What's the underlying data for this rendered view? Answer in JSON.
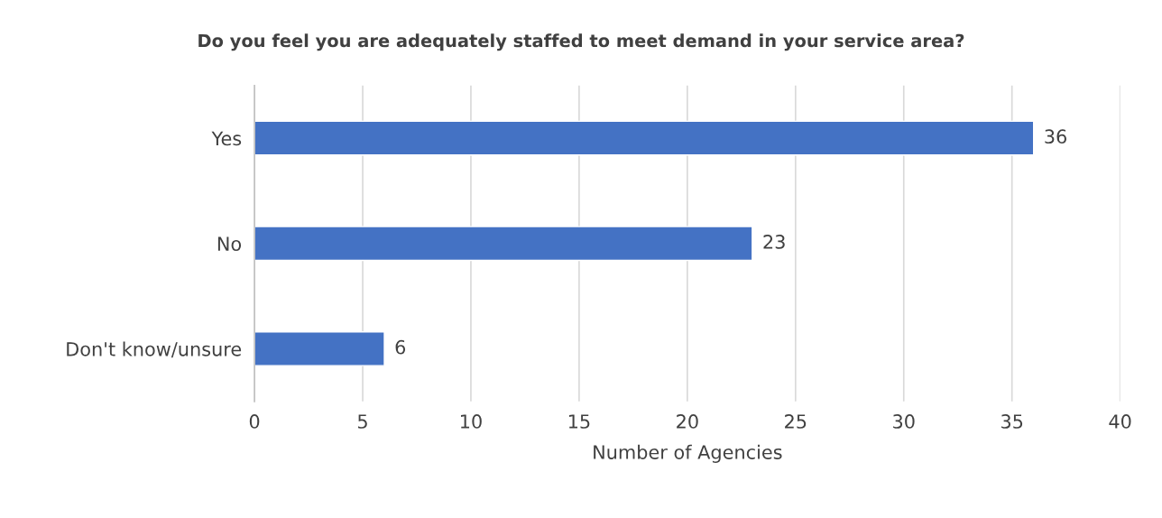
{
  "chart_data": {
    "type": "bar",
    "orientation": "horizontal",
    "title": "Do you feel you are adequately staffed to meet demand in your service area?",
    "xlabel": "Number of Agencies",
    "categories": [
      "Yes",
      "No",
      "Don't know/unsure"
    ],
    "values": [
      36,
      23,
      6
    ],
    "color": "#4472c4",
    "xlim": [
      0,
      40
    ],
    "xticks": [
      0,
      5,
      10,
      15,
      20,
      25,
      30,
      35,
      40
    ],
    "grid": "x",
    "data_labels": true
  }
}
